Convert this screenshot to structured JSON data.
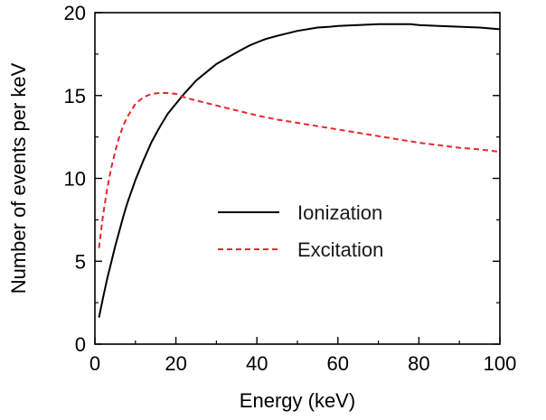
{
  "chart_data": {
    "type": "line",
    "title": "",
    "xlabel": "Energy (keV)",
    "ylabel": "Number of events per keV",
    "xlim": [
      0,
      100
    ],
    "ylim": [
      0,
      20
    ],
    "xticks": [
      0,
      20,
      40,
      60,
      80,
      100
    ],
    "yticks": [
      0,
      5,
      10,
      15,
      20
    ],
    "xtick_labels": [
      "0",
      "20",
      "40",
      "60",
      "80",
      "100"
    ],
    "ytick_labels": [
      "0",
      "5",
      "10",
      "15",
      "20"
    ],
    "grid": false,
    "legend_position": "center-right",
    "series": [
      {
        "name": "Ionization",
        "color": "#000000",
        "dash": "solid",
        "x": [
          1,
          2,
          3,
          4,
          5,
          6,
          7,
          8,
          10,
          12,
          14,
          16,
          18,
          20,
          22,
          25,
          28,
          30,
          35,
          38,
          40,
          42,
          45,
          50,
          55,
          58,
          60,
          65,
          70,
          75,
          78,
          80,
          85,
          90,
          95,
          100
        ],
        "y": [
          1.6,
          2.8,
          3.9,
          4.9,
          5.9,
          6.8,
          7.7,
          8.5,
          9.9,
          11.1,
          12.2,
          13.1,
          13.9,
          14.5,
          15.1,
          15.9,
          16.5,
          16.9,
          17.6,
          18.0,
          18.2,
          18.4,
          18.6,
          18.9,
          19.1,
          19.15,
          19.2,
          19.25,
          19.3,
          19.3,
          19.3,
          19.25,
          19.2,
          19.15,
          19.1,
          19.0
        ]
      },
      {
        "name": "Excitation",
        "color": "#e8262b",
        "dash": "dashed",
        "x": [
          1,
          2,
          3,
          4,
          5,
          6,
          7,
          8,
          10,
          12,
          14,
          16,
          18,
          20,
          22,
          25,
          30,
          35,
          40,
          45,
          50,
          55,
          60,
          65,
          70,
          75,
          80,
          85,
          90,
          95,
          100
        ],
        "y": [
          5.8,
          7.8,
          9.3,
          10.6,
          11.6,
          12.5,
          13.2,
          13.7,
          14.5,
          14.9,
          15.1,
          15.15,
          15.15,
          15.1,
          14.9,
          14.7,
          14.4,
          14.1,
          13.8,
          13.55,
          13.35,
          13.15,
          12.95,
          12.75,
          12.55,
          12.35,
          12.15,
          12.0,
          11.85,
          11.75,
          11.6
        ]
      }
    ]
  }
}
